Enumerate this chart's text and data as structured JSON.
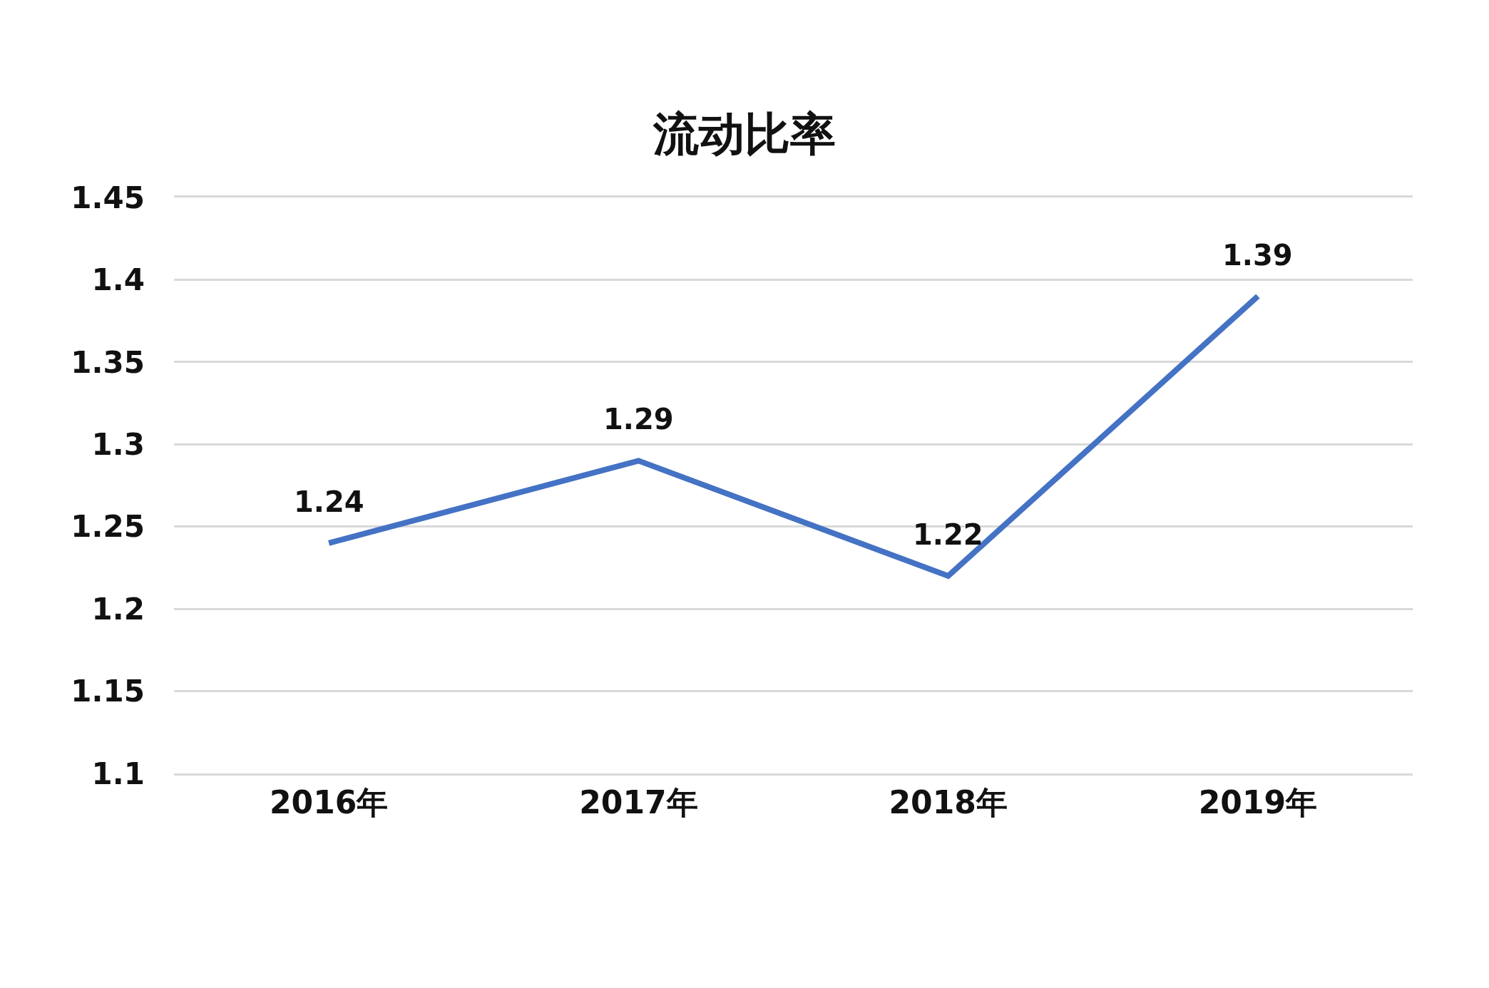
{
  "chart_data": {
    "type": "line",
    "title": "流动比率",
    "categories": [
      "2016年",
      "2017年",
      "2018年",
      "2019年"
    ],
    "series": [
      {
        "color": "#4472c4",
        "values": [
          1.24,
          1.29,
          1.22,
          1.39
        ]
      }
    ],
    "ylim": [
      1.1,
      1.45
    ],
    "yticks": [
      1.1,
      1.15,
      1.2,
      1.25,
      1.3,
      1.35,
      1.4,
      1.45
    ],
    "grid": "y",
    "data_labels": true,
    "marker": "none",
    "line_style": "solid"
  }
}
